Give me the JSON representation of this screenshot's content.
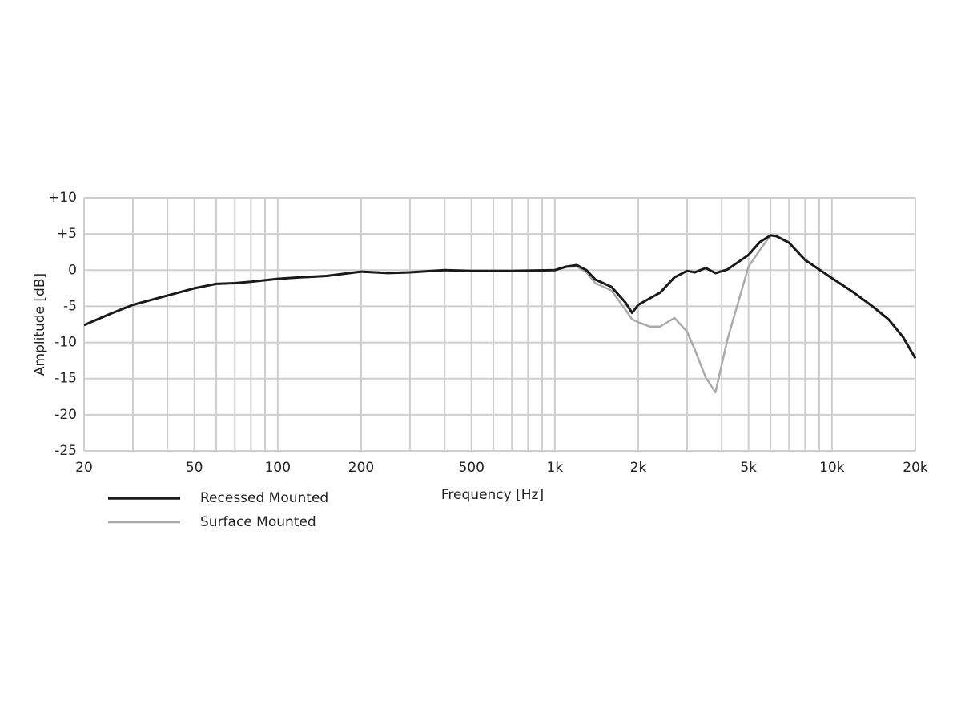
{
  "chart_data": {
    "type": "line",
    "xlabel": "Frequency [Hz]",
    "ylabel": "Amplitude [dB]",
    "xscale": "log",
    "grid": true,
    "xlim": [
      20,
      20000
    ],
    "ylim": [
      -25,
      10
    ],
    "xticks": [
      20,
      50,
      100,
      200,
      500,
      {
        "value": 1000,
        "label": "1k"
      },
      {
        "value": 2000,
        "label": "2k"
      },
      {
        "value": 5000,
        "label": "5k"
      },
      {
        "value": 10000,
        "label": "10k"
      },
      {
        "value": 20000,
        "label": "20k"
      }
    ],
    "xgrid": [
      30,
      40,
      60,
      70,
      80,
      90,
      300,
      400,
      600,
      700,
      800,
      900,
      3000,
      4000,
      6000,
      7000,
      8000,
      9000
    ],
    "yticks": [
      {
        "value": 10,
        "label": "+10"
      },
      {
        "value": 5,
        "label": "+5"
      },
      0,
      -5,
      -10,
      -15,
      -20,
      -25
    ],
    "x": [
      20,
      25,
      30,
      40,
      50,
      60,
      70,
      80,
      100,
      120,
      150,
      200,
      250,
      300,
      400,
      500,
      700,
      1000,
      1100,
      1200,
      1300,
      1400,
      1600,
      1800,
      1900,
      2000,
      2200,
      2400,
      2700,
      3000,
      3200,
      3500,
      3800,
      4200,
      5000,
      5500,
      6000,
      6300,
      7000,
      8000,
      10000,
      12000,
      14000,
      16000,
      18000,
      20000
    ],
    "series": [
      {
        "name": "Recessed Mounted",
        "color": "#1a1a1a",
        "values": [
          -7.6,
          -6.0,
          -4.8,
          -3.5,
          -2.5,
          -1.9,
          -1.8,
          -1.6,
          -1.2,
          -1.0,
          -0.8,
          -0.2,
          -0.4,
          -0.3,
          0,
          -0.1,
          -0.1,
          0,
          0.5,
          0.7,
          0,
          -1.3,
          -2.3,
          -4.5,
          -5.9,
          -4.8,
          -3.9,
          -3.1,
          -1.0,
          -0.1,
          -0.3,
          0.3,
          -0.4,
          0.1,
          2.1,
          3.9,
          4.8,
          4.7,
          3.8,
          1.4,
          -1.1,
          -3.1,
          -5.0,
          -6.8,
          -9.2,
          -12.2
        ]
      },
      {
        "name": "Surface Mounted",
        "color": "#aaaaaa",
        "values": [
          -7.6,
          -6.0,
          -4.8,
          -3.5,
          -2.5,
          -1.9,
          -1.8,
          -1.6,
          -1.2,
          -1.0,
          -0.8,
          -0.2,
          -0.4,
          -0.3,
          0,
          -0.1,
          -0.1,
          0,
          0.4,
          0.5,
          -0.3,
          -1.8,
          -2.8,
          -5.5,
          -6.8,
          -7.2,
          -7.8,
          -7.8,
          -6.6,
          -8.5,
          -11,
          -14.8,
          -16.9,
          -9.5,
          0.5,
          2.8,
          4.8,
          4.7,
          3.8,
          1.4,
          -1.1,
          -3.1,
          -5.0,
          -6.8,
          -9.2,
          -12.2
        ]
      }
    ]
  }
}
